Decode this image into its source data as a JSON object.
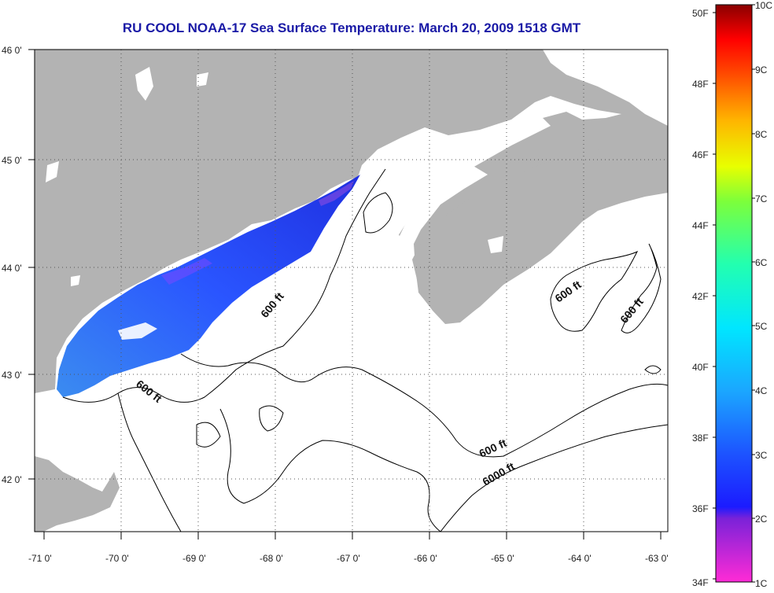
{
  "title": "RU COOL  NOAA-17  Sea Surface Temperature:  March 20, 2009 1518 GMT",
  "map": {
    "lon_ticks": [
      "-71 0'",
      "-70 0'",
      "-69 0'",
      "-68 0'",
      "-67 0'",
      "-66 0'",
      "-65 0'",
      "-64 0'",
      "-63 0'"
    ],
    "lat_ticks": [
      "46 0'",
      "45 0'",
      "44 0'",
      "43 0'",
      "42 0'"
    ],
    "contour_labels": [
      "600 ft",
      "600 ft",
      "600 ft",
      "600 ft",
      "600 ft",
      "6000 ft"
    ],
    "colors": {
      "land": "#b3b3b3",
      "water": "#ffffff",
      "sst_cold": "#2a3cff",
      "sst_mid": "#2f8dff"
    }
  },
  "colorbar": {
    "f_labels": [
      "50F",
      "48F",
      "46F",
      "44F",
      "42F",
      "40F",
      "38F",
      "36F",
      "34F"
    ],
    "c_labels": [
      "10C",
      "9C",
      "8C",
      "7C",
      "6C",
      "5C",
      "4C",
      "3C",
      "2C",
      "1C"
    ]
  }
}
